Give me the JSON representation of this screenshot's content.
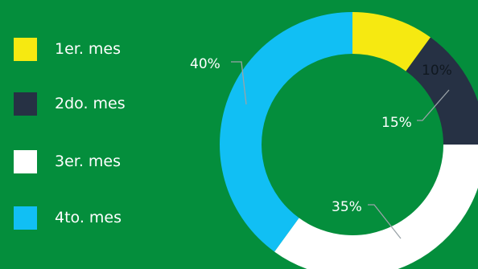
{
  "chart_data": {
    "type": "pie",
    "donut": true,
    "categories": [
      "1er. mes",
      "2do. mes",
      "3er. mes",
      "4to. mes"
    ],
    "values": [
      10,
      15,
      35,
      40
    ],
    "data_labels": [
      "10%",
      "15%",
      "35%",
      "40%"
    ],
    "colors": [
      "#f6e911",
      "#263144",
      "#ffffff",
      "#11bff4"
    ],
    "legend_position": "left",
    "title": "",
    "xlabel": "",
    "ylabel": ""
  },
  "legend": {
    "items": [
      {
        "label": "1er. mes",
        "color": "#f6e911"
      },
      {
        "label": "2do. mes",
        "color": "#263144"
      },
      {
        "label": "3er. mes",
        "color": "#ffffff"
      },
      {
        "label": "4to. mes",
        "color": "#11bff4"
      }
    ]
  },
  "colors": {
    "background": "#048e3c",
    "label_text": "#ffffff",
    "dark_label_text": "#101820",
    "leader_line": "#9aa3a8"
  }
}
